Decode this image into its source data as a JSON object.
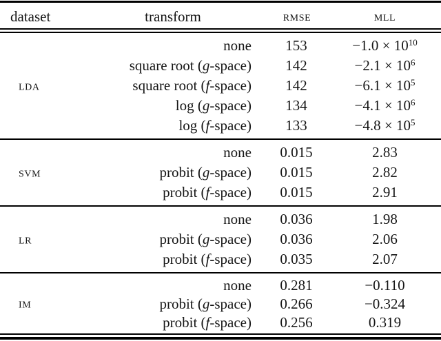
{
  "table": {
    "headers": {
      "dataset": "dataset",
      "transform": "transform",
      "rmse": "RMSE",
      "mll": "MLL"
    },
    "groups": [
      {
        "dataset": "LDA",
        "rows": [
          {
            "t_pre": "none",
            "t_it": "",
            "t_post": "",
            "rmse": "153",
            "mll_mant": "−1.0 × 10",
            "mll_sup": "10"
          },
          {
            "t_pre": "square root (",
            "t_it": "g",
            "t_post": "-space)",
            "rmse": "142",
            "mll_mant": "−2.1 × 10",
            "mll_sup": "6"
          },
          {
            "t_pre": "square root (",
            "t_it": "f",
            "t_post": "-space)",
            "rmse": "142",
            "mll_mant": "−6.1 × 10",
            "mll_sup": "5"
          },
          {
            "t_pre": "log (",
            "t_it": "g",
            "t_post": "-space)",
            "rmse": "134",
            "mll_mant": "−4.1 × 10",
            "mll_sup": "6"
          },
          {
            "t_pre": "log (",
            "t_it": "f",
            "t_post": "-space)",
            "rmse": "133",
            "mll_mant": "−4.8 × 10",
            "mll_sup": "5"
          }
        ]
      },
      {
        "dataset": "SVM",
        "rows": [
          {
            "t_pre": "none",
            "t_it": "",
            "t_post": "",
            "rmse": "0.015",
            "mll_mant": "2.83",
            "mll_sup": ""
          },
          {
            "t_pre": "probit (",
            "t_it": "g",
            "t_post": "-space)",
            "rmse": "0.015",
            "mll_mant": "2.82",
            "mll_sup": ""
          },
          {
            "t_pre": "probit (",
            "t_it": "f",
            "t_post": "-space)",
            "rmse": "0.015",
            "mll_mant": "2.91",
            "mll_sup": ""
          }
        ]
      },
      {
        "dataset": "LR",
        "rows": [
          {
            "t_pre": "none",
            "t_it": "",
            "t_post": "",
            "rmse": "0.036",
            "mll_mant": "1.98",
            "mll_sup": ""
          },
          {
            "t_pre": "probit (",
            "t_it": "g",
            "t_post": "-space)",
            "rmse": "0.036",
            "mll_mant": "2.06",
            "mll_sup": ""
          },
          {
            "t_pre": "probit (",
            "t_it": "f",
            "t_post": "-space)",
            "rmse": "0.035",
            "mll_mant": "2.07",
            "mll_sup": ""
          }
        ]
      },
      {
        "dataset": "IM",
        "rows": [
          {
            "t_pre": "none",
            "t_it": "",
            "t_post": "",
            "rmse": "0.281",
            "mll_mant": "−0.110",
            "mll_sup": ""
          },
          {
            "t_pre": "probit (",
            "t_it": "g",
            "t_post": "-space)",
            "rmse": "0.266",
            "mll_mant": "−0.324",
            "mll_sup": ""
          },
          {
            "t_pre": "probit (",
            "t_it": "f",
            "t_post": "-space)",
            "rmse": "0.256",
            "mll_mant": "0.319",
            "mll_sup": ""
          }
        ]
      }
    ],
    "colors": {
      "text": "#161616",
      "rule": "#000000",
      "background": "#ffffff"
    }
  }
}
